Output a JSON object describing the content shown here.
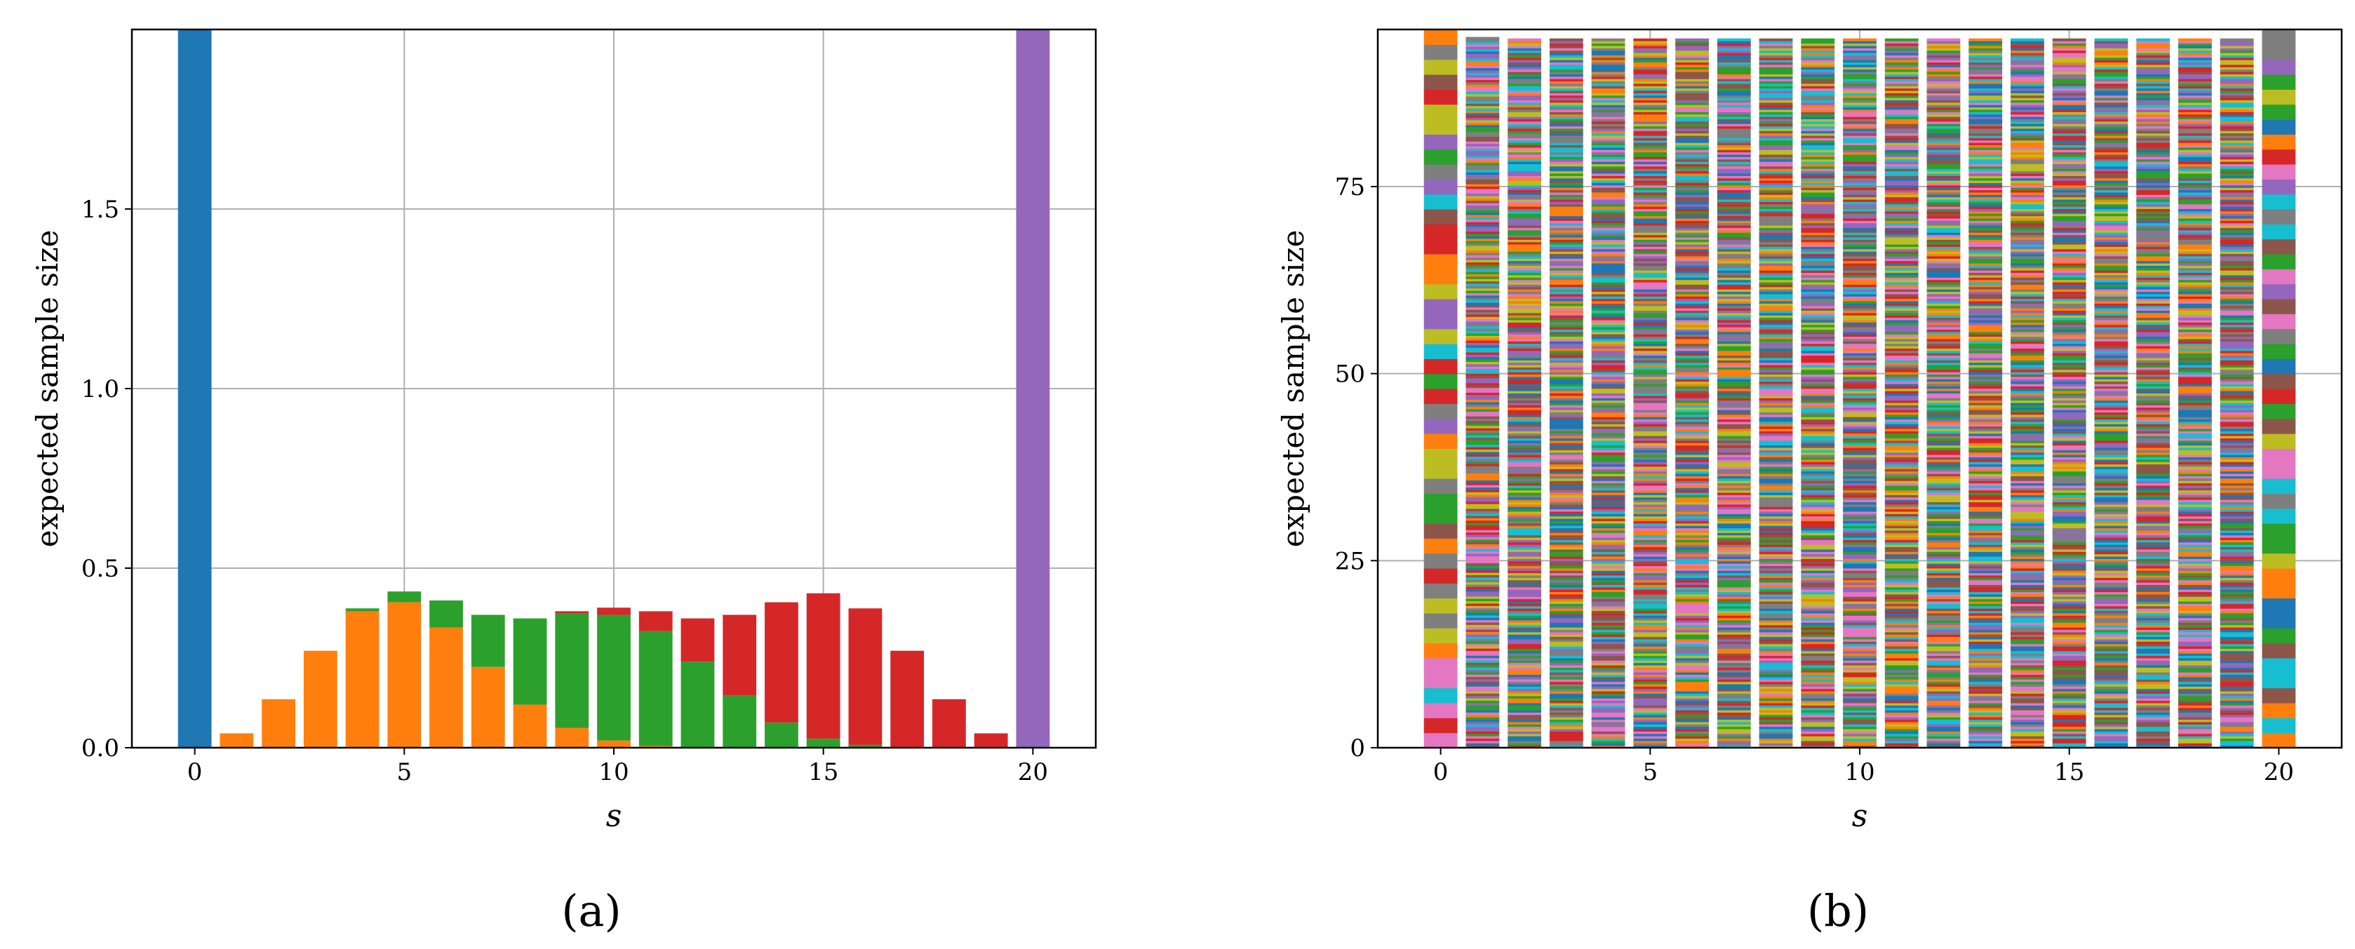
{
  "captions": {
    "a": "(a)",
    "b": "(b)"
  },
  "chart_data": [
    {
      "type": "bar",
      "stacked": true,
      "panel": "a",
      "xlabel": "s",
      "ylabel": "expected sample size",
      "xlim": [
        -1.5,
        21.5
      ],
      "ylim": [
        0,
        2.0
      ],
      "xticks": [
        0,
        5,
        10,
        15,
        20
      ],
      "yticks": [
        0.0,
        0.5,
        1.0,
        1.5
      ],
      "ytick_labels": [
        "0.0",
        "0.5",
        "1.0",
        "1.5"
      ],
      "grid": true,
      "legend": "none",
      "x": [
        0,
        1,
        2,
        3,
        4,
        5,
        6,
        7,
        8,
        9,
        10,
        11,
        12,
        13,
        14,
        15,
        16,
        17,
        18,
        19,
        20
      ],
      "series": [
        {
          "color": "#1f77b4",
          "values": [
            2.0,
            0,
            0,
            0,
            0,
            0,
            0,
            0,
            0,
            0,
            0,
            0,
            0,
            0,
            0,
            0,
            0,
            0,
            0,
            0,
            0
          ]
        },
        {
          "color": "#ff7f0e",
          "values": [
            0,
            0.04,
            0.135,
            0.27,
            0.38,
            0.405,
            0.335,
            0.225,
            0.12,
            0.055,
            0.02,
            0.005,
            0,
            0,
            0,
            0,
            0,
            0,
            0,
            0,
            0
          ]
        },
        {
          "color": "#2ca02c",
          "values": [
            0,
            0,
            0,
            0,
            0.008,
            0.03,
            0.075,
            0.145,
            0.24,
            0.32,
            0.35,
            0.32,
            0.24,
            0.145,
            0.07,
            0.025,
            0.008,
            0,
            0,
            0,
            0
          ]
        },
        {
          "color": "#d62728",
          "values": [
            0,
            0,
            0,
            0,
            0,
            0,
            0,
            0,
            0,
            0.005,
            0.02,
            0.055,
            0.12,
            0.225,
            0.335,
            0.405,
            0.38,
            0.27,
            0.135,
            0.04,
            0
          ]
        },
        {
          "color": "#9467bd",
          "values": [
            0,
            0,
            0,
            0,
            0,
            0,
            0,
            0,
            0,
            0,
            0,
            0,
            0,
            0,
            0,
            0,
            0,
            0,
            0,
            0,
            2.0
          ]
        }
      ]
    },
    {
      "type": "bar",
      "stacked": true,
      "panel": "b",
      "xlabel": "s",
      "ylabel": "expected sample size",
      "xlim": [
        -1.5,
        21.5
      ],
      "ylim": [
        0,
        96
      ],
      "xticks": [
        0,
        5,
        10,
        15,
        20
      ],
      "yticks": [
        0,
        25,
        50,
        75
      ],
      "ytick_labels": [
        "0",
        "25",
        "50",
        "75"
      ],
      "grid": true,
      "legend": "none",
      "x": [
        0,
        1,
        2,
        3,
        4,
        5,
        6,
        7,
        8,
        9,
        10,
        11,
        12,
        13,
        14,
        15,
        16,
        17,
        18,
        19,
        20
      ],
      "totals": [
        96,
        95,
        94.8,
        94.8,
        94.8,
        94.8,
        94.8,
        94.8,
        94.8,
        94.8,
        94.8,
        94.8,
        94.8,
        94.8,
        94.8,
        94.8,
        94.8,
        94.8,
        94.8,
        94.8,
        96
      ],
      "segments_per_bar": [
        48,
        300,
        300,
        300,
        300,
        300,
        300,
        300,
        300,
        300,
        300,
        300,
        300,
        300,
        300,
        300,
        300,
        300,
        300,
        300,
        48
      ],
      "palette": [
        "#1f77b4",
        "#ff7f0e",
        "#2ca02c",
        "#d62728",
        "#9467bd",
        "#8c564b",
        "#e377c2",
        "#7f7f7f",
        "#bcbd22",
        "#17becf"
      ]
    }
  ]
}
